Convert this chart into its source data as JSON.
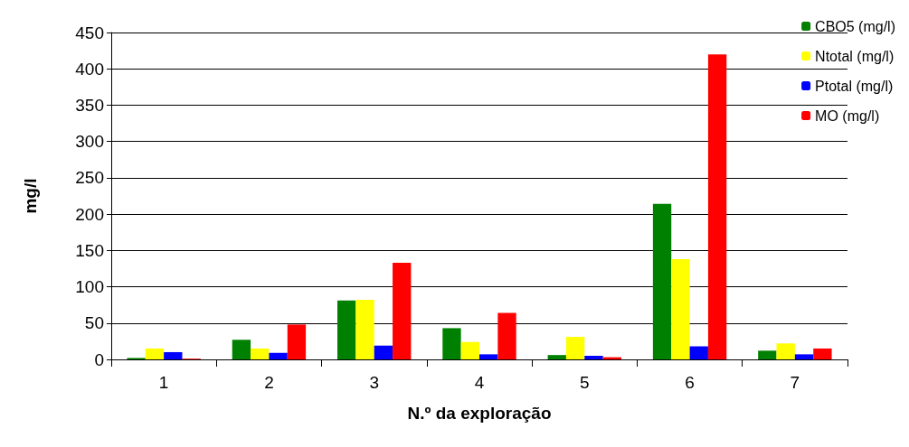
{
  "chart_data": {
    "type": "bar",
    "xlabel": "N.º da exploração",
    "ylabel": "mg/l",
    "categories": [
      "1",
      "2",
      "3",
      "4",
      "5",
      "6",
      "7"
    ],
    "series": [
      {
        "name": "CBO5 (mg/l)",
        "color": "#008000",
        "values": [
          2,
          27,
          81,
          43,
          6,
          214,
          12
        ]
      },
      {
        "name": "Ntotal (mg/l)",
        "color": "#ffff00",
        "values": [
          15,
          15,
          82,
          24,
          31,
          138,
          22
        ]
      },
      {
        "name": "Ptotal (mg/l)",
        "color": "#0000ff",
        "values": [
          10,
          9,
          19,
          7,
          5,
          18,
          7
        ]
      },
      {
        "name": "MO (mg/l)",
        "color": "#ff0000",
        "values": [
          1,
          48,
          133,
          64,
          3,
          420,
          15
        ]
      }
    ],
    "ylim": [
      0,
      450
    ],
    "yticks": [
      0,
      50,
      100,
      150,
      200,
      250,
      300,
      350,
      400,
      450
    ],
    "grid": "y",
    "legend": "top right"
  }
}
